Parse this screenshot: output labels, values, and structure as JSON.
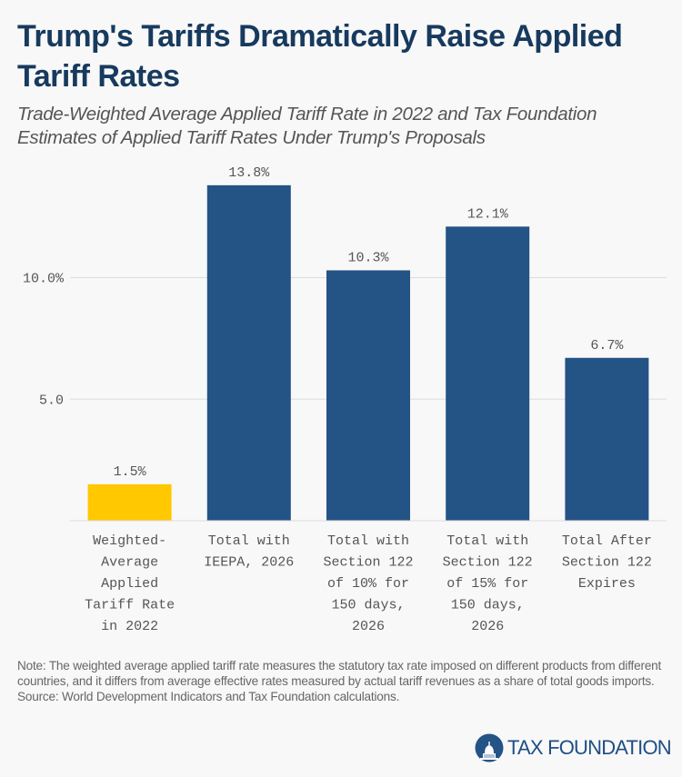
{
  "header": {
    "title": "Trump's Tariffs Dramatically Raise Applied Tariff Rates",
    "subtitle": "Trade-Weighted Average Applied Tariff Rate in 2022 and Tax Foundation Estimates of Applied Tariff Rates Under Trump's Proposals"
  },
  "chart_data": {
    "type": "bar",
    "title": "Trump's Tariffs Dramatically Raise Applied Tariff Rates",
    "subtitle": "Trade-Weighted Average Applied Tariff Rate in 2022 and Tax Foundation Estimates of Applied Tariff Rates Under Trump's Proposals",
    "categories": [
      [
        "Weighted-",
        "Average",
        "Applied",
        "Tariff Rate",
        "in 2022"
      ],
      [
        "Total with",
        "IEEPA, 2026"
      ],
      [
        "Total with",
        "Section 122",
        "of 10% for",
        "150 days,",
        "2026"
      ],
      [
        "Total with",
        "Section 122",
        "of 15% for",
        "150 days,",
        "2026"
      ],
      [
        "Total After",
        "Section 122",
        "Expires"
      ]
    ],
    "values": [
      1.5,
      13.8,
      10.3,
      12.1,
      6.7
    ],
    "value_labels": [
      "1.5%",
      "13.8%",
      "10.3%",
      "12.1%",
      "6.7%"
    ],
    "colors": [
      "#ffc800",
      "#245386",
      "#245386",
      "#245386",
      "#245386"
    ],
    "xlabel": "",
    "ylabel": "",
    "ylim": [
      0,
      15
    ],
    "yticks": [
      {
        "value": 5,
        "label": "5.0"
      },
      {
        "value": 10,
        "label": "10.0%"
      }
    ],
    "grid": true,
    "legend": "none"
  },
  "footer": {
    "note": "Note: The weighted average applied tariff rate measures the statutory tax rate imposed on different products from different countries, and it differs from average effective rates measured by actual tariff revenues as a share of total goods imports.",
    "source": "Source: World Development Indicators and Tax Foundation calculations.",
    "logo_text": "TAX FOUNDATION",
    "logo_icon": "capitol-dome-icon"
  },
  "colors": {
    "title": "#173a5e",
    "primary_bar": "#245386",
    "highlight_bar": "#ffc800",
    "gridline": "#dddddd"
  }
}
